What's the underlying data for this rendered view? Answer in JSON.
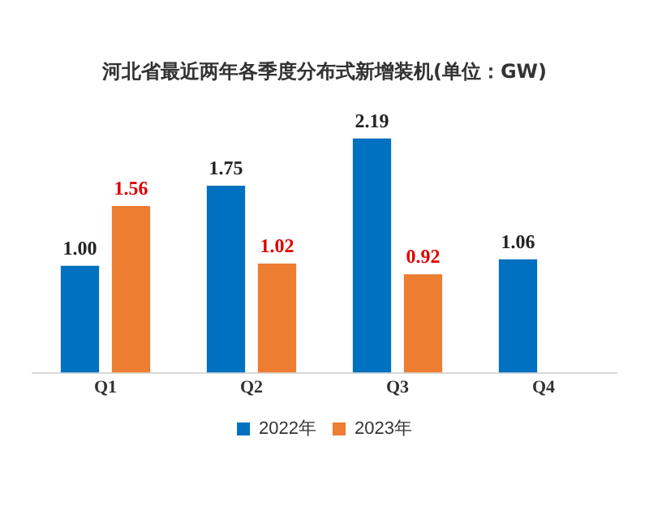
{
  "chart_data": {
    "type": "bar",
    "title": "河北省最近两年各季度分布式新增装机(单位：GW)",
    "categories": [
      "Q1",
      "Q2",
      "Q3",
      "Q4"
    ],
    "series": [
      {
        "name": "2022年",
        "color": "#0070c0",
        "values": [
          1.0,
          1.75,
          2.19,
          1.06
        ],
        "value_labels": [
          "1.00",
          "1.75",
          "2.19",
          "1.06"
        ]
      },
      {
        "name": "2023年",
        "color": "#ed7d31",
        "values": [
          1.56,
          1.02,
          0.92,
          null
        ],
        "value_labels": [
          "1.56",
          "1.02",
          "0.92",
          null
        ]
      }
    ],
    "legend": "bottom",
    "grid": false,
    "tick_labels": "x"
  }
}
